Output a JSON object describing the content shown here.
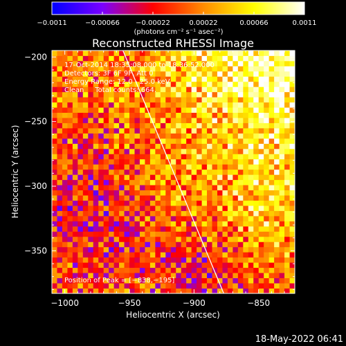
{
  "chart_data": {
    "type": "heatmap",
    "title": "Reconstructed RHESSI Image",
    "xlabel": "Heliocentric X (arcsec)",
    "ylabel": "Heliocentric Y (arcsec)",
    "xlim": [
      -1010,
      -822
    ],
    "ylim": [
      -383,
      -195
    ],
    "x_ticks": [
      -1000,
      -950,
      -900,
      -850
    ],
    "y_ticks": [
      -200,
      -250,
      -300,
      -350
    ],
    "x_tick_labels": [
      "−1000",
      "−950",
      "−900",
      "−850"
    ],
    "y_tick_labels": [
      "−200",
      "−250",
      "−300",
      "−350"
    ],
    "colorbar": {
      "range": [
        -0.0011,
        0.0011
      ],
      "ticks": [
        -0.0011,
        -0.00066,
        -0.00022,
        0.00022,
        0.00066,
        0.0011
      ],
      "tick_labels": [
        "−0.0011",
        "−0.00066",
        "−0.00022",
        "0.00022",
        "0.00066",
        "0.0011"
      ],
      "unit_label": "(photons cm⁻² s⁻¹ asec⁻²)",
      "colors": [
        "#0000ff",
        "#7a00ff",
        "#ff0000",
        "#ff8c00",
        "#ffff00",
        "#ffffff"
      ]
    },
    "info_lines": [
      "17-Oct-2014 18:35:08.000 to 18:36:52.000",
      "Detectors: 3F 6F 9F, Att 0",
      "Energy Range: 12.0 - 25.0 keV",
      "Clean     Total counts: 664."
    ],
    "peak_label": "Position of Peak = [−838,−195]",
    "peak": [
      -838,
      -195
    ],
    "limb_line": [
      [
        -955,
        -195
      ],
      [
        -877,
        -383
      ]
    ],
    "grid": false,
    "pixel_size_arcsec": 4,
    "image_note": "noisy checkerboard emission; brightest in upper-right (near -838,-195), blue/purple low values in left and bottom"
  },
  "footer": {
    "timestamp": "18-May-2022 06:41"
  }
}
